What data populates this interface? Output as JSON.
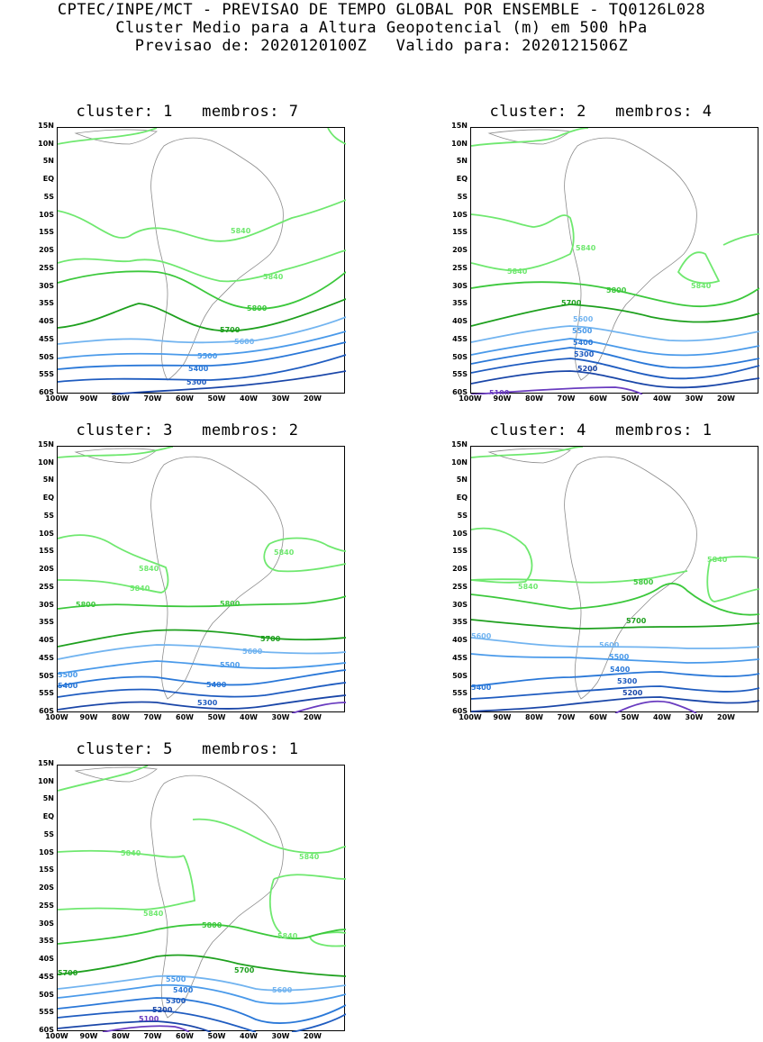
{
  "header": {
    "line1": "CPTEC/INPE/MCT - PREVISAO DE TEMPO GLOBAL POR ENSEMBLE - TQ0126L028",
    "line2": "Cluster Medio para a Altura Geopotencial (m) em 500 hPa",
    "line3": "Previsao de: 2020120100Z   Valido para: 2020121506Z"
  },
  "axes": {
    "lat_labels": [
      "15N",
      "10N",
      "5N",
      "EQ",
      "5S",
      "10S",
      "15S",
      "20S",
      "25S",
      "30S",
      "35S",
      "40S",
      "45S",
      "50S",
      "55S",
      "60S"
    ],
    "lon_labels": [
      "100W",
      "90W",
      "80W",
      "70W",
      "60W",
      "50W",
      "40W",
      "30W",
      "20W"
    ]
  },
  "colors": {
    "c5840": "#6fe86f",
    "c5800": "#3cc83c",
    "c5700": "#1ea01e",
    "c5600": "#72b4f0",
    "c5500": "#4a9aea",
    "c5400": "#2a78d8",
    "c5300": "#1f5cc0",
    "c5200": "#1a46a8",
    "c5100": "#6a3cc0",
    "coast": "#8c8c8c"
  },
  "panels": [
    {
      "title": "cluster: 1   membros: 7",
      "contour_labels": [
        {
          "text": "5840",
          "level": "c5840"
        },
        {
          "text": "5840",
          "level": "c5840"
        },
        {
          "text": "5800",
          "level": "c5800"
        },
        {
          "text": "5700",
          "level": "c5700"
        },
        {
          "text": "5600",
          "level": "c5600"
        },
        {
          "text": "5500",
          "level": "c5500"
        },
        {
          "text": "5400",
          "level": "c5400"
        },
        {
          "text": "5300",
          "level": "c5300"
        }
      ]
    },
    {
      "title": "cluster: 2   membros: 4",
      "contour_labels": [
        {
          "text": "5840",
          "level": "c5840"
        },
        {
          "text": "5840",
          "level": "c5840"
        },
        {
          "text": "5840",
          "level": "c5840"
        },
        {
          "text": "5800",
          "level": "c5800"
        },
        {
          "text": "5700",
          "level": "c5700"
        },
        {
          "text": "5600",
          "level": "c5600"
        },
        {
          "text": "5500",
          "level": "c5500"
        },
        {
          "text": "5400",
          "level": "c5400"
        },
        {
          "text": "5300",
          "level": "c5300"
        },
        {
          "text": "5200",
          "level": "c5200"
        },
        {
          "text": "5100",
          "level": "c5100"
        }
      ]
    },
    {
      "title": "cluster: 3   membros: 2",
      "contour_labels": [
        {
          "text": "5840",
          "level": "c5840"
        },
        {
          "text": "5840",
          "level": "c5840"
        },
        {
          "text": "5840",
          "level": "c5840"
        },
        {
          "text": "5800",
          "level": "c5800"
        },
        {
          "text": "5800",
          "level": "c5800"
        },
        {
          "text": "5700",
          "level": "c5700"
        },
        {
          "text": "5600",
          "level": "c5600"
        },
        {
          "text": "5500",
          "level": "c5500"
        },
        {
          "text": "5500",
          "level": "c5500"
        },
        {
          "text": "5400",
          "level": "c5400"
        },
        {
          "text": "5400",
          "level": "c5400"
        },
        {
          "text": "5300",
          "level": "c5300"
        }
      ]
    },
    {
      "title": "cluster: 4   membros: 1",
      "contour_labels": [
        {
          "text": "5840",
          "level": "c5840"
        },
        {
          "text": "5840",
          "level": "c5840"
        },
        {
          "text": "5800",
          "level": "c5800"
        },
        {
          "text": "5700",
          "level": "c5700"
        },
        {
          "text": "5600",
          "level": "c5600"
        },
        {
          "text": "5600",
          "level": "c5600"
        },
        {
          "text": "5500",
          "level": "c5500"
        },
        {
          "text": "5400",
          "level": "c5400"
        },
        {
          "text": "5400",
          "level": "c5400"
        },
        {
          "text": "5300",
          "level": "c5300"
        },
        {
          "text": "5200",
          "level": "c5200"
        }
      ]
    },
    {
      "title": "cluster: 5   membros: 1",
      "contour_labels": [
        {
          "text": "5840",
          "level": "c5840"
        },
        {
          "text": "5840",
          "level": "c5840"
        },
        {
          "text": "5840",
          "level": "c5840"
        },
        {
          "text": "5840",
          "level": "c5840"
        },
        {
          "text": "5800",
          "level": "c5800"
        },
        {
          "text": "5700",
          "level": "c5700"
        },
        {
          "text": "5700",
          "level": "c5700"
        },
        {
          "text": "5600",
          "level": "c5600"
        },
        {
          "text": "5500",
          "level": "c5500"
        },
        {
          "text": "5400",
          "level": "c5400"
        },
        {
          "text": "5300",
          "level": "c5300"
        },
        {
          "text": "5200",
          "level": "c5200"
        },
        {
          "text": "5100",
          "level": "c5100"
        }
      ]
    }
  ]
}
